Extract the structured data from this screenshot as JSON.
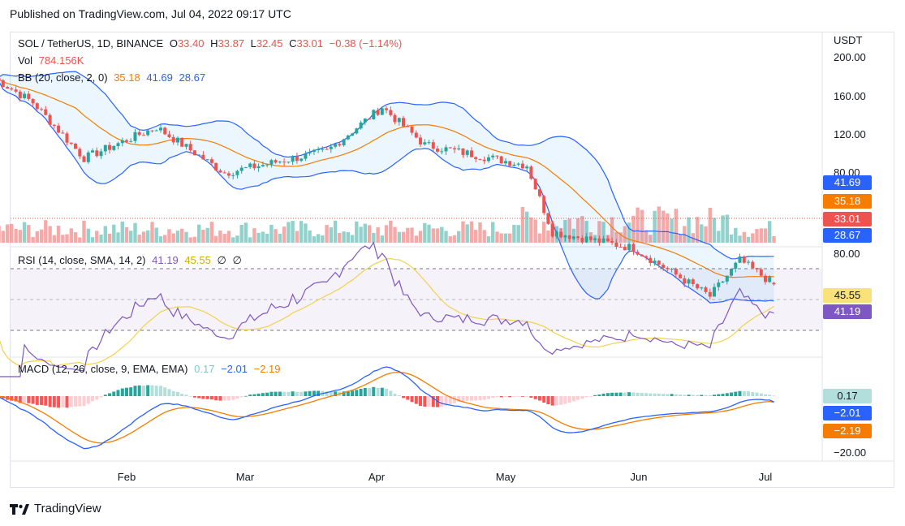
{
  "published": "Published on TradingView.com, Jul 04, 2022 09:17 UTC",
  "footer_brand": "TradingView",
  "currency": "USDT",
  "colors": {
    "up": "#26a69a",
    "down": "#ef5350",
    "bb_basis": "#f57c00",
    "bb_band": "#2962ff",
    "rsi": "#7e57c2",
    "rsi_ma": "#f2d24b",
    "macd": "#2962ff",
    "signal": "#f57c00"
  },
  "legend": {
    "main": {
      "symbol": "SOL / TetherUS, 1D, BINANCE",
      "o_label": "O",
      "o": "33.40",
      "h_label": "H",
      "h": "33.87",
      "l_label": "L",
      "l": "32.45",
      "c_label": "C",
      "c": "33.01",
      "change": "−0.38 (−1.14%)"
    },
    "vol": {
      "label": "Vol",
      "value": "784.156K"
    },
    "bb": {
      "label": "BB (20, close, 2, 0)",
      "basis": "35.18",
      "upper": "41.69",
      "lower": "28.67"
    },
    "rsi": {
      "label": "RSI (14, close, SMA, 14, 2)",
      "rsi": "41.19",
      "ma": "45.55",
      "e1": "∅",
      "e2": "∅"
    },
    "macd": {
      "label": "MACD (12, 26, close, 9, EMA, EMA)",
      "hist": "0.17",
      "macd": "−2.01",
      "signal": "−2.19"
    }
  },
  "price_axis": [
    "200.00",
    "160.00",
    "120.00",
    "80.00"
  ],
  "rsi_axis": [
    "80.00"
  ],
  "macd_axis": [
    "−20.00"
  ],
  "tags": {
    "bb_upper": "41.69",
    "bb_basis": "35.18",
    "last": "33.01",
    "bb_lower": "28.67",
    "rsi_ma": "45.55",
    "rsi": "41.19",
    "hist": "0.17",
    "macd": "−2.01",
    "signal": "−2.19"
  },
  "x_labels": [
    "Feb",
    "Mar",
    "Apr",
    "May",
    "Jun",
    "Jul"
  ],
  "chart_data": {
    "type": "candlestick",
    "symbol": "SOL / TetherUS",
    "interval": "1D",
    "exchange": "BINANCE",
    "x_labels": [
      "Feb",
      "Mar",
      "Apr",
      "May",
      "Jun",
      "Jul"
    ],
    "log_scale": true,
    "price_ticks": [
      200,
      160,
      120,
      80
    ],
    "key_points": [
      {
        "x": "Jan 01",
        "close": 170
      },
      {
        "x": "Jan 10",
        "close": 140
      },
      {
        "x": "Jan 22",
        "close": 90
      },
      {
        "x": "Feb 08",
        "close": 115
      },
      {
        "x": "Feb 24",
        "close": 80
      },
      {
        "x": "Mar 20",
        "close": 95
      },
      {
        "x": "Apr 02",
        "close": 135
      },
      {
        "x": "Apr 12",
        "close": 100
      },
      {
        "x": "May 06",
        "close": 85
      },
      {
        "x": "May 12",
        "close": 50
      },
      {
        "x": "May 31",
        "close": 44
      },
      {
        "x": "Jun 18",
        "close": 30
      },
      {
        "x": "Jun 25",
        "close": 40
      },
      {
        "x": "Jul 03",
        "close": 33.01
      }
    ],
    "last_bar": {
      "open": 33.4,
      "high": 33.87,
      "low": 32.45,
      "close": 33.01,
      "change": -0.38,
      "change_pct": -1.14
    },
    "volume_last": "784.156K",
    "bollinger": {
      "length": 20,
      "mult": 2,
      "basis": 35.18,
      "upper": 41.69,
      "lower": 28.67
    },
    "rsi": {
      "length": 14,
      "value": 41.19,
      "ma": 45.55,
      "overbought": 70,
      "oversold": 30
    },
    "macd": {
      "fast": 12,
      "slow": 26,
      "signal_len": 9,
      "macd": -2.01,
      "signal": -2.19,
      "hist": 0.17
    }
  }
}
